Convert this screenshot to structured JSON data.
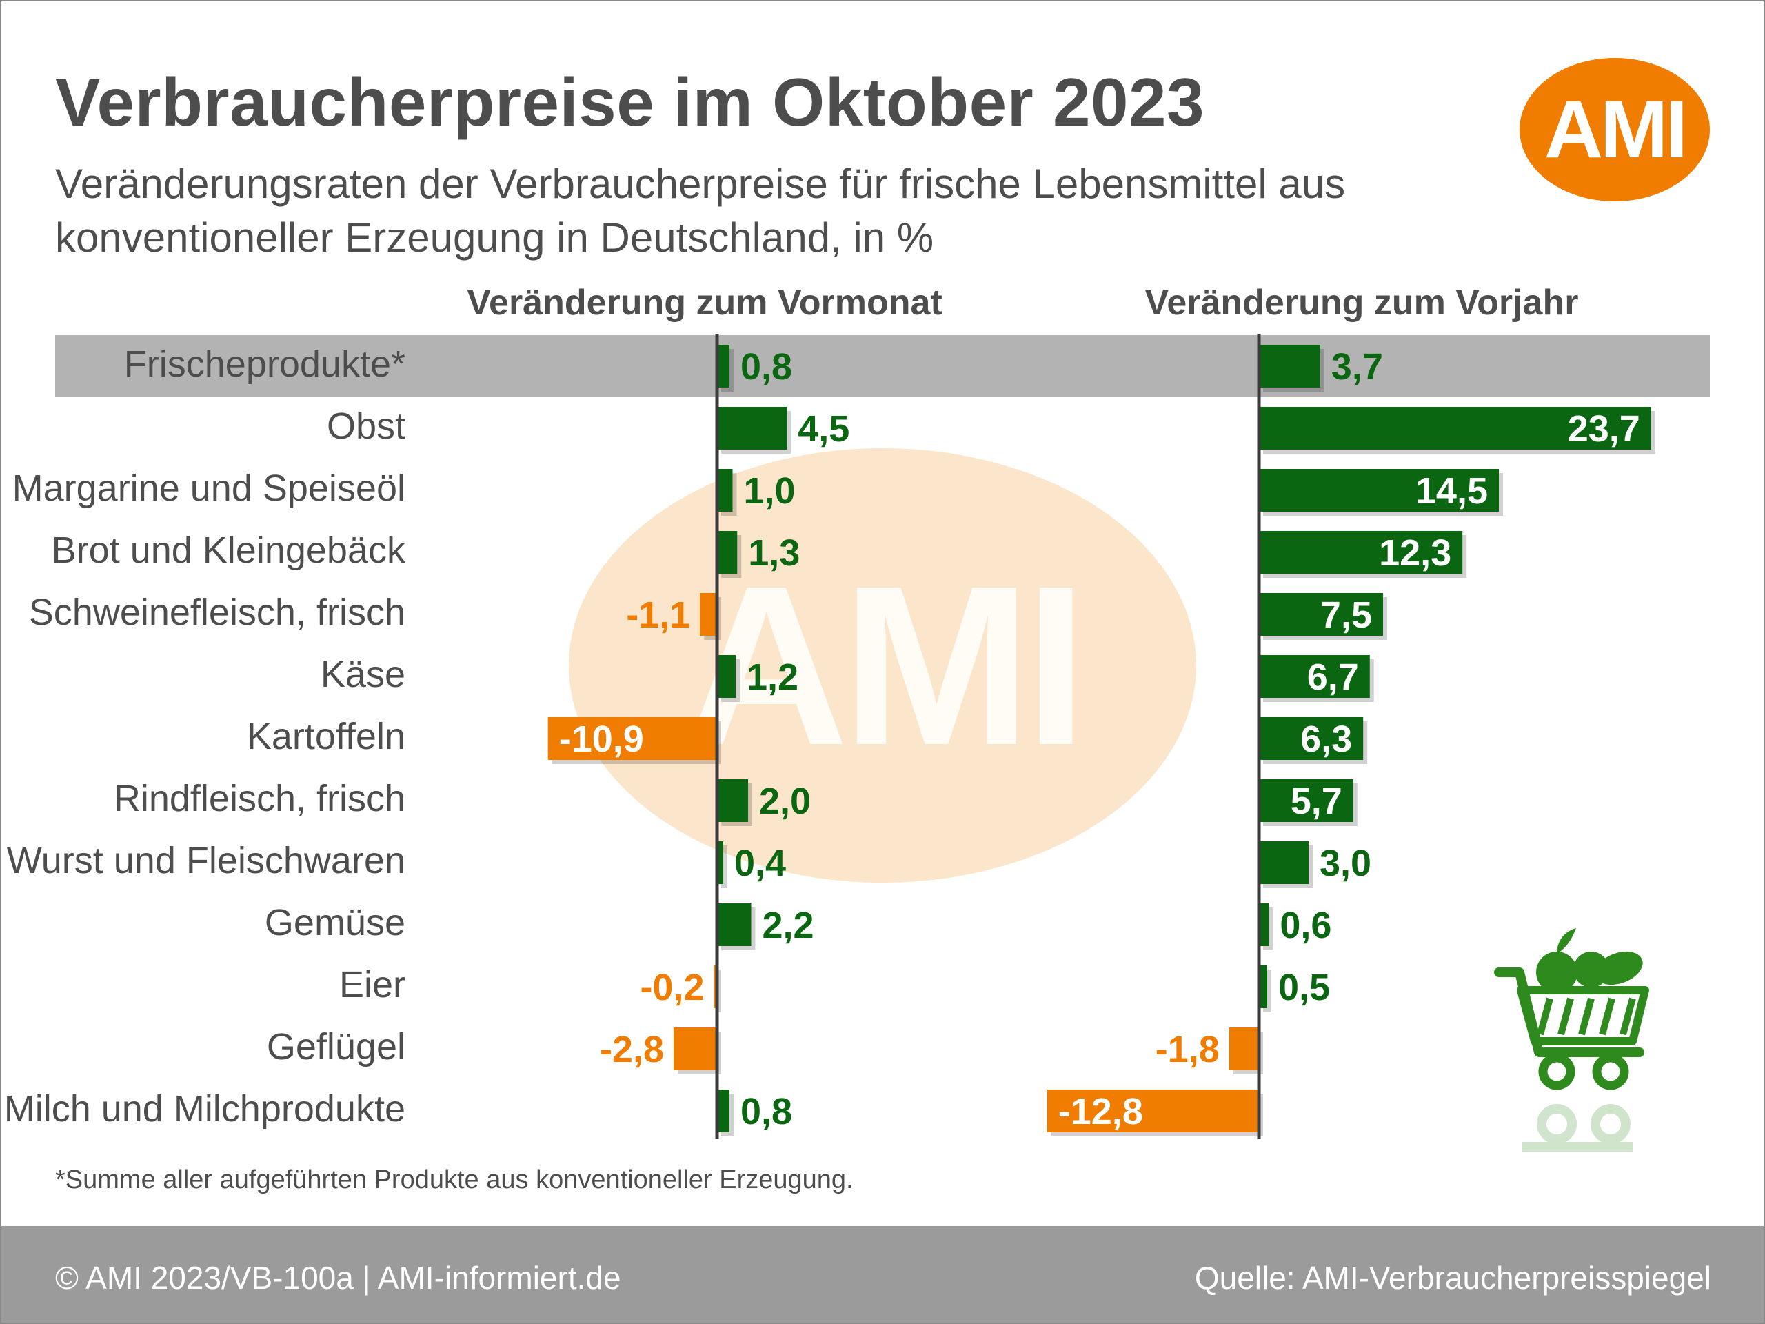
{
  "title": "Verbraucherpreise im Oktober 2023",
  "subtitle": "Veränderungsraten der Verbraucherpreise für frische Lebensmittel aus konventioneller Erzeugung in Deutschland, in %",
  "logo_text": "AMI",
  "watermark_text": "AMI",
  "footnote": "*Summe aller aufgeführten Produkte aus konventioneller Erzeugung.",
  "footer": {
    "left": "© AMI 2023/VB-100a | AMI-informiert.de",
    "right": "Quelle: AMI-Verbraucherpreisspiegel"
  },
  "colors": {
    "positive": "#0a6610",
    "negative": "#f07d00",
    "highlight_row": "#b3b3b3",
    "text": "#4d4d4d",
    "footer": "#9b9b9b"
  },
  "chart_data": [
    {
      "type": "bar",
      "orientation": "horizontal",
      "title": "Veränderung zum Vormonat",
      "categories": [
        "Frischeprodukte*",
        "Obst",
        "Margarine und Speiseöl",
        "Brot und Kleingebäck",
        "Schweinefleisch, frisch",
        "Käse",
        "Kartoffeln",
        "Rindfleisch, frisch",
        "Wurst und Fleischwaren",
        "Gemüse",
        "Eier",
        "Geflügel",
        "Milch und Milchprodukte"
      ],
      "values": [
        0.8,
        4.5,
        1.0,
        1.3,
        -1.1,
        1.2,
        -10.9,
        2.0,
        0.4,
        2.2,
        -0.2,
        -2.8,
        0.8
      ],
      "labels": [
        "0,8",
        "4,5",
        "1,0",
        "1,3",
        "-1,1",
        "1,2",
        "-10,9",
        "2,0",
        "0,4",
        "2,2",
        "-0,2",
        "-2,8",
        "0,8"
      ]
    },
    {
      "type": "bar",
      "orientation": "horizontal",
      "title": "Veränderung zum Vorjahr",
      "categories": [
        "Frischeprodukte*",
        "Obst",
        "Margarine und Speiseöl",
        "Brot und Kleingebäck",
        "Schweinefleisch, frisch",
        "Käse",
        "Kartoffeln",
        "Rindfleisch, frisch",
        "Wurst und Fleischwaren",
        "Gemüse",
        "Eier",
        "Geflügel",
        "Milch und Milchprodukte"
      ],
      "values": [
        3.7,
        23.7,
        14.5,
        12.3,
        7.5,
        6.7,
        6.3,
        5.7,
        3.0,
        0.6,
        0.5,
        -1.8,
        -12.8
      ],
      "labels": [
        "3,7",
        "23,7",
        "14,5",
        "12,3",
        "7,5",
        "6,7",
        "6,3",
        "5,7",
        "3,0",
        "0,6",
        "0,5",
        "-1,8",
        "-12,8"
      ]
    }
  ]
}
